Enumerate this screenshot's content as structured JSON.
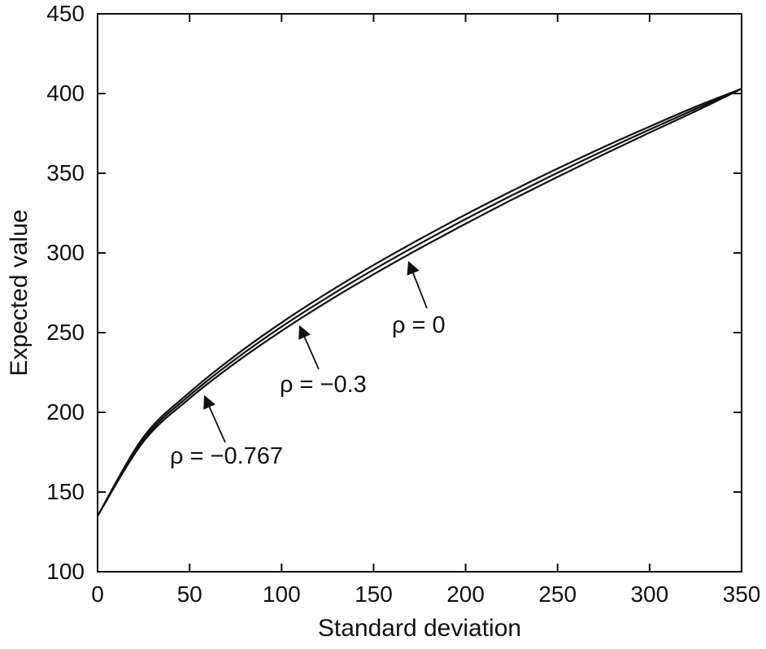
{
  "figure": {
    "background": "#ffffff",
    "line_color": "#111111"
  },
  "chart_data": {
    "type": "line",
    "title": "",
    "xlabel": "Standard deviation",
    "ylabel": "Expected value",
    "xlim": [
      0,
      350
    ],
    "ylim": [
      100,
      450
    ],
    "x_ticks": [
      0,
      50,
      100,
      150,
      200,
      250,
      300,
      350
    ],
    "y_ticks": [
      100,
      150,
      200,
      250,
      300,
      350,
      400,
      450
    ],
    "grid": false,
    "legend_position": "none",
    "x": [
      0,
      25,
      50,
      75,
      100,
      125,
      150,
      175,
      200,
      225,
      250,
      275,
      300,
      325,
      350
    ],
    "series": [
      {
        "name": "ρ = −0.767",
        "position": "top curve",
        "color": "#111111",
        "values": [
          135,
          184.6,
          212.5,
          235.7,
          256.3,
          275.0,
          292.4,
          308.6,
          324.1,
          338.8,
          352.9,
          366.4,
          379.3,
          391.7,
          403
        ]
      },
      {
        "name": "ρ = −0.3",
        "position": "middle curve",
        "color": "#111111",
        "values": [
          135,
          183.2,
          210.6,
          233.4,
          253.7,
          272.2,
          289.5,
          305.7,
          321.2,
          336.0,
          350.3,
          364.1,
          377.4,
          390.3,
          403
        ]
      },
      {
        "name": "ρ = 0",
        "position": "bottom curve",
        "color": "#111111",
        "values": [
          135,
          181.8,
          208.7,
          231.1,
          251.1,
          269.5,
          286.6,
          302.8,
          318.3,
          333.3,
          347.7,
          361.8,
          375.5,
          388.9,
          403
        ]
      }
    ],
    "annotations": [
      {
        "label": "ρ = −0.767"
      },
      {
        "label": "ρ = −0.3"
      },
      {
        "label": "ρ = 0"
      }
    ]
  }
}
